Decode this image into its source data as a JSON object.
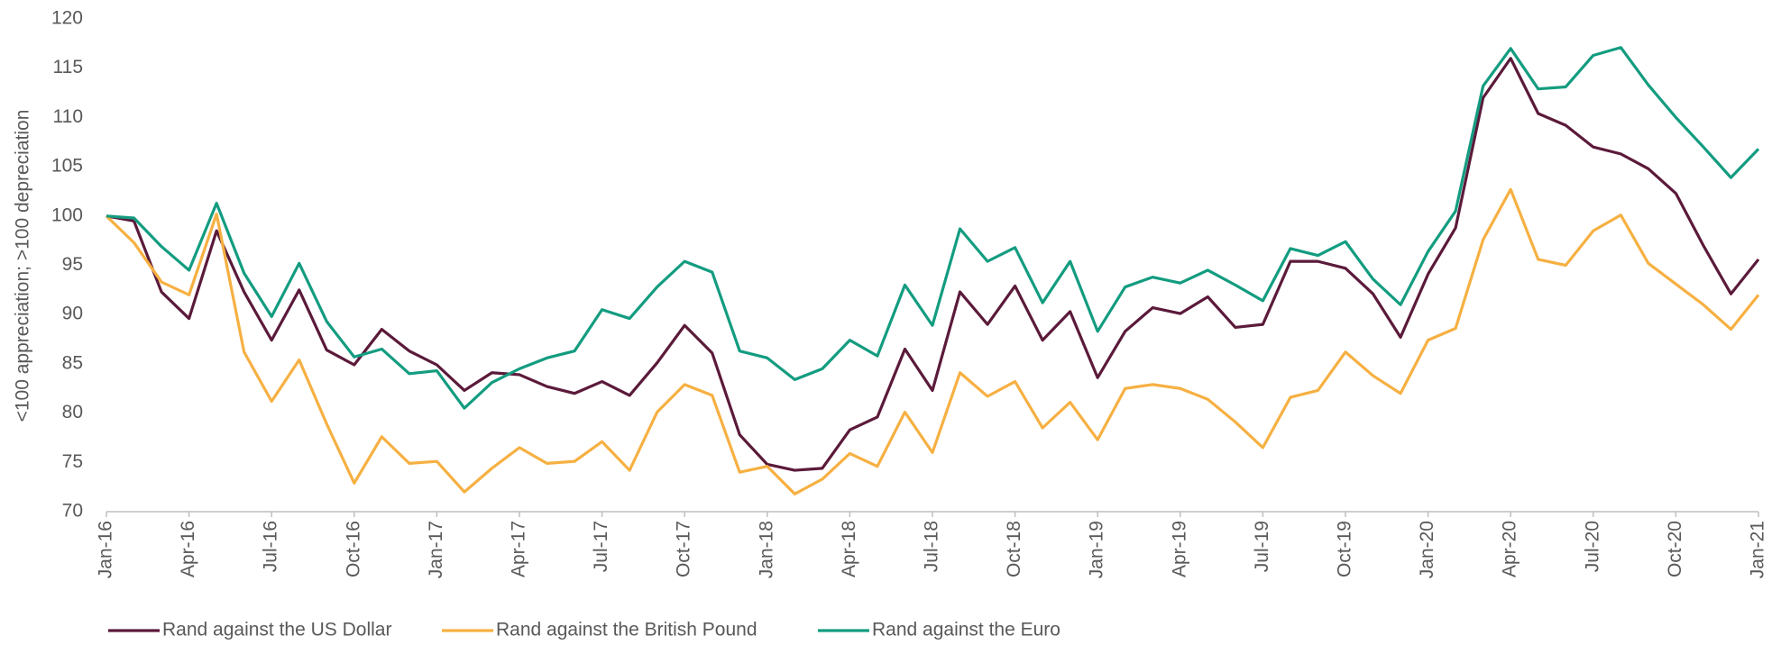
{
  "chart_data": {
    "type": "line",
    "ylabel": "<100 appreciation; >100 depreciation",
    "categories": [
      "Jan-16",
      null,
      null,
      "Apr-16",
      null,
      null,
      "Jul-16",
      null,
      null,
      "Oct-16",
      null,
      null,
      "Jan-17",
      null,
      null,
      "Apr-17",
      null,
      null,
      "Jul-17",
      null,
      null,
      "Oct-17",
      null,
      null,
      "Jan-18",
      null,
      null,
      "Apr-18",
      null,
      null,
      "Jul-18",
      null,
      null,
      "Oct-18",
      null,
      null,
      "Jan-19",
      null,
      null,
      "Apr-19",
      null,
      null,
      "Jul-19",
      null,
      null,
      "Oct-19",
      null,
      null,
      "Jan-20",
      null,
      null,
      "Apr-20",
      null,
      null,
      "Jul-20",
      null,
      null,
      "Oct-20",
      null,
      null,
      "Jan-21"
    ],
    "series": [
      {
        "name": "Rand against the US Dollar",
        "color": "#5b1a3a",
        "values": [
          100,
          99.5,
          92.3,
          89.6,
          98.5,
          92.3,
          87.4,
          92.5,
          86.4,
          84.9,
          88.5,
          86.3,
          84.9,
          82.3,
          84.1,
          83.9,
          82.7,
          82.0,
          83.2,
          81.8,
          85.1,
          88.9,
          86.1,
          77.8,
          74.8,
          74.2,
          74.4,
          78.3,
          79.6,
          86.5,
          82.3,
          92.3,
          89.0,
          92.9,
          87.4,
          90.3,
          83.6,
          88.3,
          90.7,
          90.1,
          91.8,
          88.7,
          89.0,
          95.4,
          95.4,
          94.7,
          92.1,
          87.7,
          94.1,
          98.8,
          112.0,
          116.0,
          110.4,
          109.2,
          107.0,
          106.3,
          104.8,
          102.3,
          97.0,
          92.1,
          95.6
        ]
      },
      {
        "name": "Rand against the British Pound",
        "color": "#f6b042",
        "values": [
          100,
          97.3,
          93.3,
          92.0,
          100.2,
          86.2,
          81.2,
          85.4,
          78.9,
          72.9,
          77.6,
          74.9,
          75.1,
          72.0,
          74.4,
          76.5,
          74.9,
          75.1,
          77.1,
          74.2,
          80.1,
          82.9,
          81.8,
          74.0,
          74.6,
          71.8,
          73.3,
          75.9,
          74.6,
          80.1,
          76.0,
          84.1,
          81.7,
          83.2,
          78.5,
          81.1,
          77.3,
          82.5,
          82.9,
          82.5,
          81.4,
          79.1,
          76.5,
          81.6,
          82.3,
          86.2,
          83.8,
          82.0,
          87.4,
          88.6,
          97.6,
          102.7,
          95.6,
          95.0,
          98.5,
          100.1,
          95.2,
          93.1,
          91.0,
          88.5,
          92.0
        ]
      },
      {
        "name": "Rand against the Euro",
        "color": "#139c80",
        "values": [
          100,
          99.8,
          96.9,
          94.5,
          101.3,
          94.2,
          89.8,
          95.2,
          89.3,
          85.7,
          86.5,
          84.0,
          84.3,
          80.5,
          83.1,
          84.5,
          85.6,
          86.3,
          90.5,
          89.6,
          92.8,
          95.4,
          94.3,
          86.3,
          85.6,
          83.4,
          84.5,
          87.4,
          85.8,
          93.0,
          88.9,
          98.7,
          95.4,
          96.8,
          91.2,
          95.4,
          88.3,
          92.8,
          93.8,
          93.2,
          94.5,
          93.0,
          91.4,
          96.7,
          96.0,
          97.4,
          93.6,
          91.0,
          96.4,
          100.5,
          113.2,
          117.0,
          112.9,
          113.1,
          116.3,
          117.1,
          113.3,
          110.0,
          107.0,
          103.9,
          106.8
        ]
      }
    ],
    "ylim": [
      70,
      120
    ],
    "yticks": [
      70,
      75,
      80,
      85,
      90,
      95,
      100,
      105,
      110,
      115,
      120
    ],
    "grid": false,
    "legend": "bottom"
  }
}
